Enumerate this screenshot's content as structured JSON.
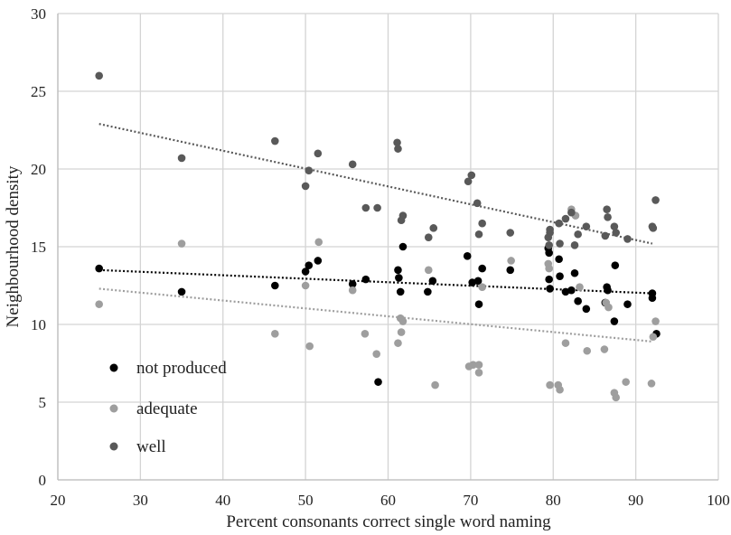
{
  "chart_data": {
    "type": "scatter",
    "xlabel": "Percent consonants correct single word naming",
    "ylabel": "Neighbourhood density",
    "xlim": [
      20,
      100
    ],
    "ylim": [
      0,
      30
    ],
    "x_ticks": [
      20,
      30,
      40,
      50,
      60,
      70,
      80,
      90,
      100
    ],
    "y_ticks": [
      0,
      5,
      10,
      15,
      20,
      25,
      30
    ],
    "grid": "vertical and horizontal",
    "legend_position": "bottom-left",
    "trendlines": "dotted linear fit per series",
    "series": [
      {
        "name": "not produced",
        "color": "#000000",
        "trend": [
          [
            25,
            13.5
          ],
          [
            92,
            12.0
          ]
        ],
        "points": [
          [
            25,
            13.6
          ],
          [
            35,
            12.1
          ],
          [
            46.3,
            12.5
          ],
          [
            50,
            13.4
          ],
          [
            50.4,
            13.8
          ],
          [
            51.5,
            14.1
          ],
          [
            55.7,
            12.6
          ],
          [
            57.3,
            12.9
          ],
          [
            58.8,
            6.3
          ],
          [
            61.2,
            13.5
          ],
          [
            61.3,
            13.0
          ],
          [
            61.5,
            12.1
          ],
          [
            61.8,
            15.0
          ],
          [
            64.8,
            12.1
          ],
          [
            65.4,
            12.8
          ],
          [
            69.6,
            14.4
          ],
          [
            70.2,
            12.7
          ],
          [
            70.9,
            12.8
          ],
          [
            71.0,
            11.3
          ],
          [
            71.4,
            13.6
          ],
          [
            74.8,
            13.5
          ],
          [
            79.4,
            14.9
          ],
          [
            79.5,
            14.6
          ],
          [
            79.5,
            12.9
          ],
          [
            79.6,
            12.3
          ],
          [
            80.7,
            14.2
          ],
          [
            80.8,
            13.1
          ],
          [
            81.5,
            12.1
          ],
          [
            82.2,
            12.2
          ],
          [
            82.6,
            13.3
          ],
          [
            83.0,
            11.5
          ],
          [
            84.0,
            11.0
          ],
          [
            86.3,
            11.4
          ],
          [
            86.5,
            12.4
          ],
          [
            86.6,
            12.2
          ],
          [
            87.4,
            10.2
          ],
          [
            87.5,
            13.8
          ],
          [
            89.0,
            11.3
          ],
          [
            92.0,
            12.0
          ],
          [
            92.0,
            11.7
          ],
          [
            92.5,
            9.4
          ]
        ]
      },
      {
        "name": "adequate",
        "color": "#9e9e9e",
        "trend": [
          [
            25,
            12.3
          ],
          [
            92,
            8.9
          ]
        ],
        "points": [
          [
            25,
            11.3
          ],
          [
            35,
            15.2
          ],
          [
            46.3,
            9.4
          ],
          [
            50,
            12.5
          ],
          [
            50.5,
            8.6
          ],
          [
            51.6,
            15.3
          ],
          [
            55.7,
            12.2
          ],
          [
            57.2,
            9.4
          ],
          [
            58.6,
            8.1
          ],
          [
            61.2,
            8.8
          ],
          [
            61.5,
            10.4
          ],
          [
            61.6,
            9.5
          ],
          [
            61.8,
            10.2
          ],
          [
            64.9,
            13.5
          ],
          [
            65.7,
            6.1
          ],
          [
            69.8,
            7.3
          ],
          [
            70.3,
            7.4
          ],
          [
            71.0,
            7.4
          ],
          [
            71.0,
            6.9
          ],
          [
            71.4,
            12.4
          ],
          [
            74.9,
            14.1
          ],
          [
            79.4,
            13.9
          ],
          [
            79.5,
            13.6
          ],
          [
            79.6,
            6.1
          ],
          [
            80.6,
            6.1
          ],
          [
            80.8,
            5.8
          ],
          [
            81.5,
            8.8
          ],
          [
            82.2,
            17.4
          ],
          [
            82.7,
            17.0
          ],
          [
            83.2,
            12.4
          ],
          [
            84.1,
            8.3
          ],
          [
            86.2,
            8.4
          ],
          [
            86.4,
            11.4
          ],
          [
            86.7,
            11.1
          ],
          [
            87.4,
            5.6
          ],
          [
            87.6,
            5.3
          ],
          [
            88.8,
            6.3
          ],
          [
            91.9,
            6.2
          ],
          [
            92.1,
            9.2
          ],
          [
            92.4,
            10.2
          ]
        ]
      },
      {
        "name": "well",
        "color": "#595959",
        "trend": [
          [
            25,
            22.9
          ],
          [
            92,
            15.2
          ]
        ],
        "points": [
          [
            25,
            26.0
          ],
          [
            35,
            20.7
          ],
          [
            46.3,
            21.8
          ],
          [
            50,
            18.9
          ],
          [
            50.4,
            19.9
          ],
          [
            51.5,
            21.0
          ],
          [
            55.7,
            20.3
          ],
          [
            57.3,
            17.5
          ],
          [
            58.7,
            17.5
          ],
          [
            61.1,
            21.7
          ],
          [
            61.2,
            21.3
          ],
          [
            61.6,
            16.7
          ],
          [
            61.8,
            17.0
          ],
          [
            64.9,
            15.6
          ],
          [
            65.5,
            16.2
          ],
          [
            69.7,
            19.2
          ],
          [
            70.1,
            19.6
          ],
          [
            70.8,
            17.8
          ],
          [
            71.0,
            15.8
          ],
          [
            71.4,
            16.5
          ],
          [
            74.8,
            15.9
          ],
          [
            79.4,
            15.6
          ],
          [
            79.5,
            15.1
          ],
          [
            79.6,
            15.9
          ],
          [
            79.6,
            16.1
          ],
          [
            80.7,
            16.5
          ],
          [
            80.8,
            15.2
          ],
          [
            81.5,
            16.8
          ],
          [
            82.2,
            17.2
          ],
          [
            82.6,
            15.1
          ],
          [
            83.0,
            15.8
          ],
          [
            84.0,
            16.3
          ],
          [
            86.3,
            15.7
          ],
          [
            86.5,
            17.4
          ],
          [
            86.6,
            16.9
          ],
          [
            87.4,
            16.3
          ],
          [
            87.6,
            15.9
          ],
          [
            89.0,
            15.5
          ],
          [
            92.0,
            16.3
          ],
          [
            92.1,
            16.2
          ],
          [
            92.4,
            18.0
          ]
        ]
      }
    ]
  }
}
